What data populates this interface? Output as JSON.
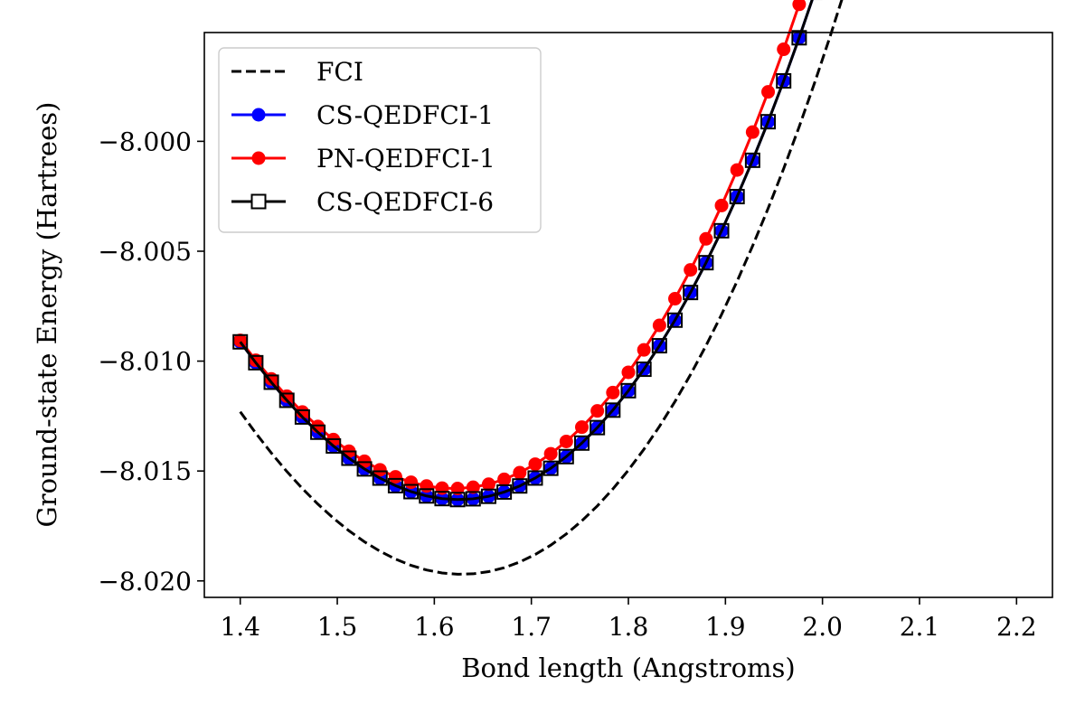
{
  "chart_data": {
    "type": "line",
    "title": "",
    "xlabel": "Bond length (Angstroms)",
    "ylabel": "Ground-state Energy (Hartrees)",
    "xlim": [
      1.363,
      2.237
    ],
    "ylim": [
      -8.02075,
      -7.99505
    ],
    "xticks": [
      1.4,
      1.5,
      1.6,
      1.7,
      1.8,
      1.9,
      2.0,
      2.1,
      2.2
    ],
    "xtick_labels": [
      "1.4",
      "1.5",
      "1.6",
      "1.7",
      "1.8",
      "1.9",
      "2.0",
      "2.1",
      "2.2"
    ],
    "yticks": [
      -8.02,
      -8.015,
      -8.01,
      -8.005,
      -8.0
    ],
    "ytick_labels": [
      "−8.020",
      "−8.015",
      "−8.010",
      "−8.005",
      "−8.000"
    ],
    "grid": false,
    "legend_position": "top-left",
    "series": [
      {
        "name": "FCI",
        "color": "#000000",
        "style": "dashed",
        "marker": "none",
        "model": {
          "min_x": 1.628,
          "min_y": -8.0197,
          "a": 0.1525,
          "b": 0.045
        }
      },
      {
        "name": "CS-QEDFCI-1",
        "color": "#0000ff",
        "style": "solid",
        "marker": "circle",
        "model": {
          "min_x": 1.625,
          "min_y": -8.0163,
          "a": 0.153,
          "b": 0.05
        }
      },
      {
        "name": "PN-QEDFCI-1",
        "color": "#ff0000",
        "style": "solid",
        "marker": "circle",
        "model": {
          "min_x": 1.62,
          "min_y": -8.0158,
          "a": 0.1525,
          "b": 0.06
        }
      },
      {
        "name": "CS-QEDFCI-6",
        "color": "#000000",
        "style": "solid",
        "marker": "square-open",
        "model": {
          "min_x": 1.625,
          "min_y": -8.0163,
          "a": 0.153,
          "b": 0.05
        }
      }
    ],
    "marker_x_range": [
      1.4,
      2.2
    ],
    "marker_count": 51
  }
}
